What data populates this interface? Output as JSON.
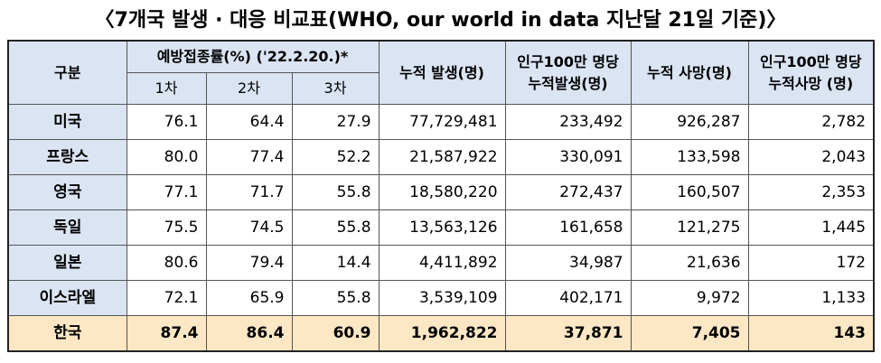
{
  "title": "〈7개국 발생 · 대응 비교표(WHO, our world in data 지난달 21일 기준)〉",
  "headers": {
    "category": "구분",
    "vaccination": "예방접종률(%) ('22.2.20.)*",
    "dose1": "1차",
    "dose2": "2차",
    "dose3": "3차",
    "cum_cases": "누적 발생(명)",
    "cases_per_million_line1": "인구100만 명당",
    "cases_per_million_line2": "누적발생(명)",
    "cum_deaths": "누적 사망(명)",
    "deaths_per_million_line1": "인구100만 명당",
    "deaths_per_million_line2": "누적사망 (명)"
  },
  "rows": [
    {
      "country": "미국",
      "d1": "76.1",
      "d2": "64.4",
      "d3": "27.9",
      "cases": "77,729,481",
      "cases_pm": "233,492",
      "deaths": "926,287",
      "deaths_pm": "2,782"
    },
    {
      "country": "프랑스",
      "d1": "80.0",
      "d2": "77.4",
      "d3": "52.2",
      "cases": "21,587,922",
      "cases_pm": "330,091",
      "deaths": "133,598",
      "deaths_pm": "2,043"
    },
    {
      "country": "영국",
      "d1": "77.1",
      "d2": "71.7",
      "d3": "55.8",
      "cases": "18,580,220",
      "cases_pm": "272,437",
      "deaths": "160,507",
      "deaths_pm": "2,353"
    },
    {
      "country": "독일",
      "d1": "75.5",
      "d2": "74.5",
      "d3": "55.8",
      "cases": "13,563,126",
      "cases_pm": "161,658",
      "deaths": "121,275",
      "deaths_pm": "1,445"
    },
    {
      "country": "일본",
      "d1": "80.6",
      "d2": "79.4",
      "d3": "14.4",
      "cases": "4,411,892",
      "cases_pm": "34,987",
      "deaths": "21,636",
      "deaths_pm": "172"
    },
    {
      "country": "이스라엘",
      "d1": "72.1",
      "d2": "65.9",
      "d3": "55.8",
      "cases": "3,539,109",
      "cases_pm": "402,171",
      "deaths": "9,972",
      "deaths_pm": "1,133"
    },
    {
      "country": "한국",
      "d1": "87.4",
      "d2": "86.4",
      "d3": "60.9",
      "cases": "1,962,822",
      "cases_pm": "37,871",
      "deaths": "7,405",
      "deaths_pm": "143"
    }
  ],
  "colors": {
    "header_bg": "#dbe4f3",
    "korea_row_bg": "#fde7c4",
    "border": "#555555"
  }
}
